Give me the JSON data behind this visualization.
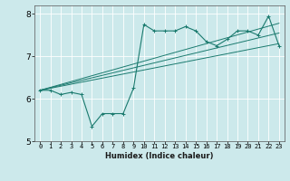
{
  "xlabel": "Humidex (Indice chaleur)",
  "bg_color": "#cce9eb",
  "line_color": "#1a7a6e",
  "grid_color": "#ffffff",
  "x_data": [
    0,
    1,
    2,
    3,
    4,
    5,
    6,
    7,
    8,
    9,
    10,
    11,
    12,
    13,
    14,
    15,
    16,
    17,
    18,
    19,
    20,
    21,
    22,
    23
  ],
  "y_main": [
    6.2,
    6.2,
    6.1,
    6.15,
    6.1,
    5.35,
    5.65,
    5.65,
    5.65,
    6.25,
    7.75,
    7.6,
    7.6,
    7.6,
    7.7,
    7.6,
    7.35,
    7.25,
    7.4,
    7.6,
    7.6,
    7.5,
    7.95,
    7.25
  ],
  "trend_starts": [
    6.2,
    6.2,
    6.2
  ],
  "trend_ends": [
    7.3,
    7.55,
    7.78
  ],
  "ylim": [
    5.0,
    8.2
  ],
  "yticks": [
    5,
    6,
    7,
    8
  ],
  "xticks": [
    0,
    1,
    2,
    3,
    4,
    5,
    6,
    7,
    8,
    9,
    10,
    11,
    12,
    13,
    14,
    15,
    16,
    17,
    18,
    19,
    20,
    21,
    22,
    23
  ],
  "xlabel_fontsize": 6,
  "tick_fontsize": 5
}
